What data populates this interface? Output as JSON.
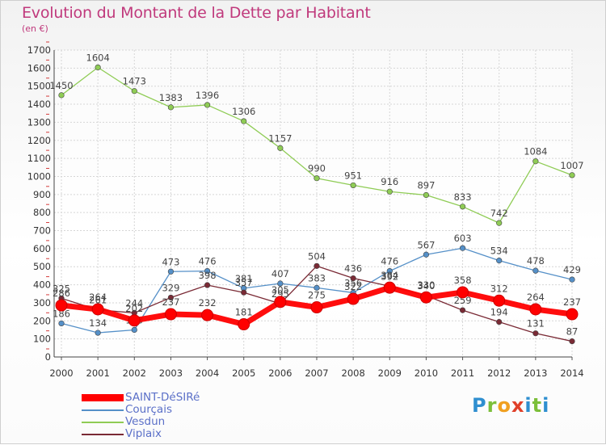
{
  "header": {
    "title": "Evolution du Montant de la Dette par Habitant",
    "subtitle": "(en €)"
  },
  "chart_data": {
    "type": "line",
    "x": [
      "2000",
      "2001",
      "2002",
      "2003",
      "2004",
      "2005",
      "2006",
      "2007",
      "2008",
      "2009",
      "2010",
      "2011",
      "2012",
      "2013",
      "2014"
    ],
    "ylim": [
      0,
      1700
    ],
    "yticks": [
      0,
      100,
      200,
      300,
      400,
      500,
      600,
      700,
      800,
      900,
      1000,
      1100,
      1200,
      1300,
      1400,
      1500,
      1600,
      1700
    ],
    "grid": true,
    "legend_position": "bottom-left",
    "series": [
      {
        "name": "SAINT-DéSIRé",
        "color": "#ff0000",
        "values": [
          286,
          264,
          202,
          237,
          232,
          181,
          305,
          275,
          322,
          384,
          330,
          358,
          312,
          264,
          237
        ]
      },
      {
        "name": "Courçais",
        "color": "#5590c8",
        "values": [
          186,
          134,
          150,
          473,
          476,
          381,
          407,
          383,
          356,
          476,
          567,
          603,
          534,
          478,
          429
        ]
      },
      {
        "name": "Vesdun",
        "color": "#8fcc55",
        "values": [
          1450,
          1604,
          1473,
          1383,
          1396,
          1306,
          1157,
          990,
          951,
          916,
          897,
          833,
          742,
          1084,
          1007
        ]
      },
      {
        "name": "Viplaix",
        "color": "#7a2a35",
        "values": [
          325,
          261,
          244,
          329,
          398,
          357,
          295,
          504,
          436,
          392,
          340,
          259,
          194,
          131,
          87
        ]
      }
    ]
  },
  "brand": {
    "letters": [
      "P",
      "r",
      "o",
      "x",
      "i",
      "t",
      "i"
    ]
  }
}
